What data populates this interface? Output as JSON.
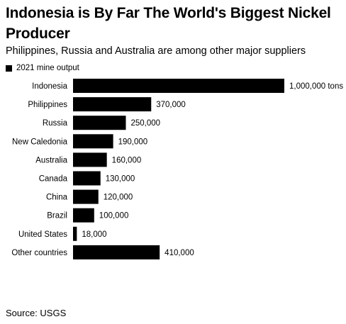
{
  "title": "Indonesia is By Far The World's Biggest Nickel Producer",
  "subtitle": "Philippines, Russia and Australia are among other major suppliers",
  "legend_label": "2021 mine output",
  "source": "Source: USGS",
  "colors": {
    "bar": "#000000",
    "text": "#000000",
    "background": "#ffffff"
  },
  "chart_data": {
    "type": "bar",
    "orientation": "horizontal",
    "title": "Indonesia is By Far The World's Biggest Nickel Producer",
    "subtitle": "Philippines, Russia and Australia are among other major suppliers",
    "categories": [
      "Indonesia",
      "Philippines",
      "Russia",
      "New Caledonia",
      "Australia",
      "Canada",
      "China",
      "Brazil",
      "United States",
      "Other countries"
    ],
    "series": [
      {
        "name": "2021 mine output",
        "values": [
          1000000,
          370000,
          250000,
          190000,
          160000,
          130000,
          120000,
          100000,
          18000,
          410000
        ]
      }
    ],
    "value_labels": [
      "1,000,000 tons",
      "370,000",
      "250,000",
      "190,000",
      "160,000",
      "130,000",
      "120,000",
      "100,000",
      "18,000",
      "410,000"
    ],
    "xlim": [
      0,
      1000000
    ],
    "grid": false,
    "legend": "top-left"
  }
}
